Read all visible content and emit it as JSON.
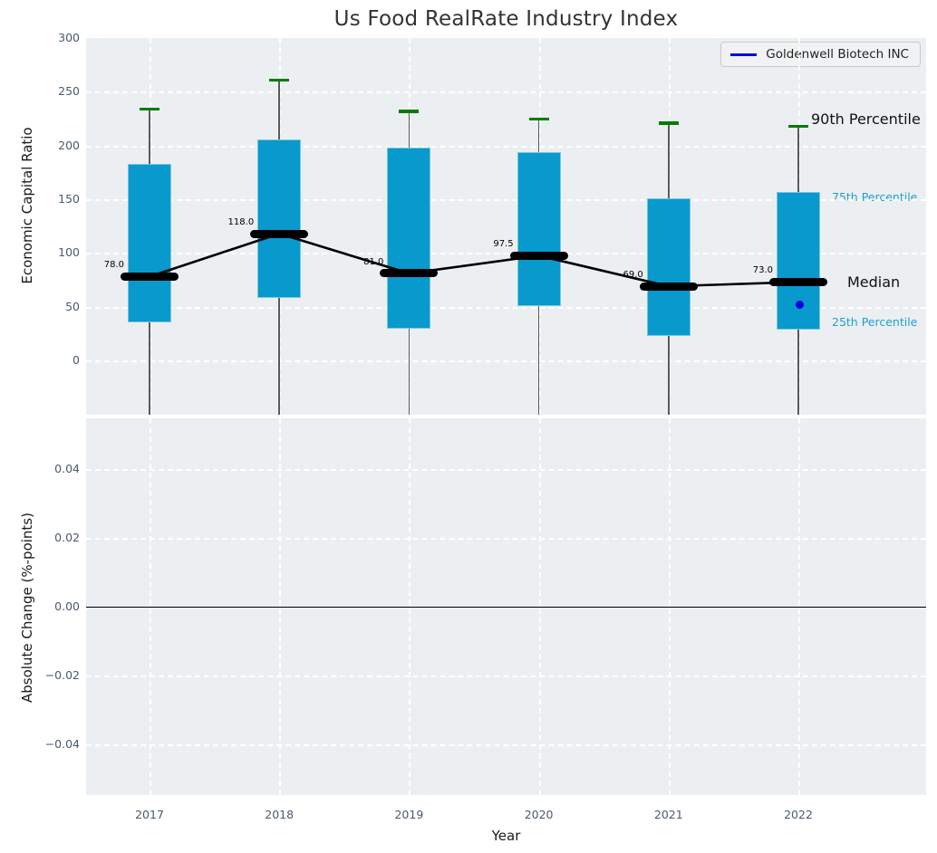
{
  "title": "Us Food RealRate Industry Index",
  "legend": {
    "label": "Goldenwell Biotech INC",
    "line_color": "#0000e0"
  },
  "top_axis": {
    "ylabel": "Economic Capital Ratio",
    "ytick_labels": [
      "300",
      "250",
      "200",
      "150",
      "100",
      "50",
      "0"
    ],
    "ytick_values": [
      300,
      250,
      200,
      150,
      100,
      50,
      0
    ]
  },
  "bottom_axis": {
    "ylabel": "Absolute Change (%-points)",
    "ytick_labels": [
      "0.04",
      "0.02",
      "0.00",
      "−0.02",
      "−0.04"
    ],
    "ytick_values": [
      0.04,
      0.02,
      0.0,
      -0.02,
      -0.04
    ],
    "xlabel": "Year"
  },
  "xtick_labels": [
    "2017",
    "2018",
    "2019",
    "2020",
    "2021",
    "2022"
  ],
  "side_annotations": {
    "p90": "90th Percentile",
    "p75": "75th Percentile",
    "median": "Median",
    "p25": "25th Percentile"
  },
  "colors": {
    "box_fill": "#0899cd",
    "cap_green": "#007d00",
    "whisker": "#5a5a5a",
    "median": "#000000",
    "company_blue": "#0000e0",
    "panel_bg": "#eceff1",
    "grid": "#ffffff",
    "tick_text": "#4a5a70",
    "percentile_text": "#1f9fd0"
  },
  "chart_data": [
    {
      "type": "boxplot",
      "title": "Us Food RealRate Industry Index",
      "xlabel": "Year",
      "ylabel": "Economic Capital Ratio",
      "categories": [
        2017,
        2018,
        2019,
        2020,
        2021,
        2022
      ],
      "series": [
        {
          "name": "90th Percentile",
          "values": [
            234,
            261,
            232,
            225,
            221,
            218
          ]
        },
        {
          "name": "75th Percentile",
          "values": [
            183,
            206,
            198,
            193.5,
            151,
            157
          ]
        },
        {
          "name": "Median",
          "values": [
            78.0,
            118.0,
            81.0,
            97.5,
            69.0,
            73.0
          ]
        },
        {
          "name": "25th Percentile",
          "values": [
            35.5,
            58,
            29.5,
            50.5,
            23,
            29
          ]
        },
        {
          "name": "Goldenwell Biotech INC",
          "type": "scatter",
          "points": [
            {
              "x": 2022,
              "y": 51.5
            }
          ]
        }
      ],
      "median_labels": [
        "78.0",
        "118.0",
        "81.0",
        "97.5",
        "69.0",
        "73.0"
      ],
      "whiskers_extend_below_axis": true,
      "ylim": [
        -50.5,
        300
      ],
      "grid": true,
      "legend_position": "upper right"
    },
    {
      "type": "line",
      "xlabel": "Year",
      "ylabel": "Absolute Change (%-points)",
      "categories": [
        2017,
        2018,
        2019,
        2020,
        2021,
        2022
      ],
      "series": [],
      "ylim": [
        -0.0548,
        0.0548
      ],
      "zero_line": 0.0,
      "grid": true
    }
  ]
}
